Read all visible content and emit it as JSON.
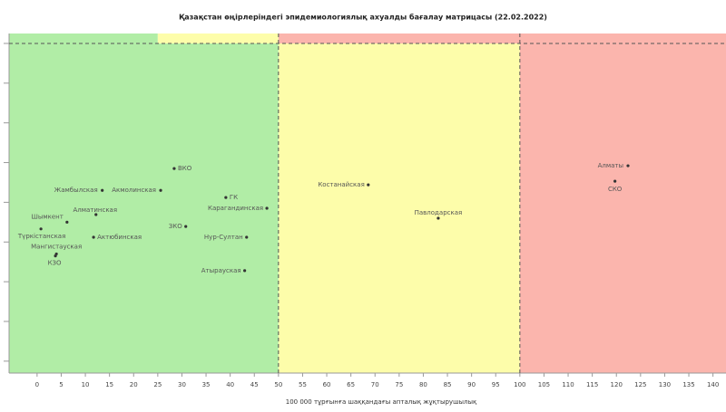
{
  "chart_data": {
    "type": "scatter",
    "title": "Қазақстан өңірлеріндегі эпидемиологиялық ахуалды бағалау матрицасы  (22.02.2022)",
    "x_label": "100 000 тұрғынға шаққандағы апталық жұқтырушылық",
    "xlim": [
      -5.8,
      142.7
    ],
    "ylim": [
      -0.3,
      8.25
    ],
    "xticks": [
      0,
      5,
      10,
      15,
      20,
      25,
      30,
      35,
      40,
      45,
      50,
      55,
      60,
      65,
      70,
      75,
      80,
      85,
      90,
      95,
      100,
      105,
      110,
      115,
      120,
      125,
      130,
      135,
      140
    ],
    "yticks": [
      0,
      1,
      2,
      3,
      4,
      5,
      6,
      7,
      8
    ],
    "zones": [
      {
        "x": [
          -5.8,
          50
        ],
        "y": [
          -0.3,
          8
        ],
        "color": "#b1eda6"
      },
      {
        "x": [
          50,
          100
        ],
        "y": [
          -0.3,
          8
        ],
        "color": "#fdfdaa"
      },
      {
        "x": [
          100,
          142.7
        ],
        "y": [
          -0.3,
          8
        ],
        "color": "#fbb5ad"
      },
      {
        "x": [
          -5.8,
          25
        ],
        "y": [
          8,
          8.25
        ],
        "color": "#b1eda6"
      },
      {
        "x": [
          25,
          50
        ],
        "y": [
          8,
          8.25
        ],
        "color": "#fdfdaa"
      },
      {
        "x": [
          50,
          142.7
        ],
        "y": [
          8,
          8.25
        ],
        "color": "#fbb5ad"
      }
    ],
    "threshold_x": [
      50,
      100
    ],
    "threshold_y": [
      8
    ],
    "series": [
      {
        "color": "#333333",
        "labels": [
          "ВКО",
          "Жамбылская",
          "Акмолинская",
          "ГК",
          "Карагандинская",
          "Алматинская",
          "Шымкент",
          "Түркістанская",
          "Актюбинская",
          "ЗКО",
          "Нур-Султан",
          "Мангистауская",
          "КЗО",
          "Атырауская",
          "Костанайская",
          "Павлодарская",
          "Алматы",
          "СКО"
        ],
        "x": [
          28.4,
          13.5,
          25.6,
          39.1,
          47.6,
          12.2,
          6.2,
          0.8,
          11.7,
          30.8,
          43.4,
          4.0,
          3.8,
          43.0,
          68.6,
          83.1,
          122.4,
          119.7
        ],
        "values": [
          4.85,
          4.3,
          4.3,
          4.12,
          3.85,
          3.69,
          3.5,
          3.33,
          3.12,
          3.39,
          3.12,
          2.7,
          2.65,
          2.28,
          4.44,
          3.6,
          4.92,
          4.53
        ]
      }
    ]
  }
}
